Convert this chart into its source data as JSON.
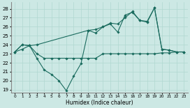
{
  "xlabel": "Humidex (Indice chaleur)",
  "bg_color": "#cce8e4",
  "line_color": "#1a6b5e",
  "grid_color": "#b0d8d0",
  "xlim": [
    -0.5,
    23.5
  ],
  "ylim": [
    18.7,
    28.7
  ],
  "yticks": [
    19,
    20,
    21,
    22,
    23,
    24,
    25,
    26,
    27,
    28
  ],
  "xticks": [
    0,
    1,
    2,
    3,
    4,
    5,
    6,
    7,
    8,
    9,
    10,
    11,
    12,
    13,
    14,
    15,
    16,
    17,
    18,
    19,
    20,
    21,
    22,
    23
  ],
  "series": [
    {
      "x": [
        0,
        1,
        2,
        3,
        4,
        5,
        6,
        7,
        8,
        9,
        10,
        11,
        12,
        13,
        14,
        15,
        16,
        17,
        18,
        19,
        20,
        21,
        22,
        23
      ],
      "y": [
        23.2,
        24.0,
        23.9,
        23.0,
        22.5,
        22.5,
        22.5,
        22.5,
        22.5,
        22.5,
        22.5,
        22.5,
        23.0,
        23.0,
        23.0,
        23.0,
        23.0,
        23.0,
        23.0,
        23.0,
        23.1,
        23.1,
        23.2,
        23.2
      ]
    },
    {
      "x": [
        0,
        1,
        2,
        3,
        4,
        5,
        6,
        7,
        8,
        9,
        10,
        11,
        12,
        13,
        14,
        15,
        16,
        17,
        18,
        19,
        20,
        21,
        22,
        23
      ],
      "y": [
        23.2,
        24.0,
        23.9,
        22.5,
        21.2,
        20.7,
        20.0,
        18.9,
        20.5,
        21.9,
        25.6,
        25.7,
        26.0,
        26.3,
        25.4,
        27.3,
        27.6,
        26.7,
        26.6,
        28.1,
        23.5,
        23.4,
        23.2,
        23.2
      ]
    },
    {
      "x": [
        0,
        1,
        2,
        3,
        10,
        11,
        12,
        13,
        14,
        15,
        16,
        17,
        18,
        19,
        20,
        21,
        22,
        23
      ],
      "y": [
        23.2,
        23.5,
        23.9,
        24.0,
        25.6,
        25.3,
        26.0,
        26.4,
        26.3,
        27.0,
        27.7,
        26.7,
        26.5,
        28.1,
        23.5,
        23.4,
        23.2,
        23.2
      ]
    }
  ]
}
